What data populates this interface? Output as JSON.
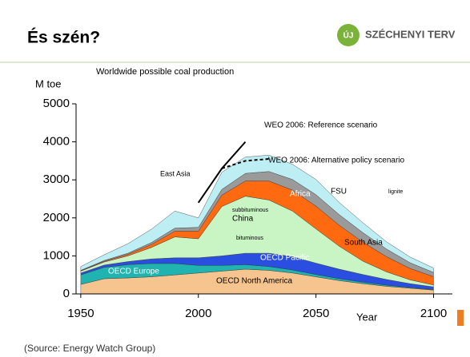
{
  "header": {
    "title": "És szén?",
    "logo_badge": "ÚJ",
    "logo_text": "SZÉCHENYI TERV"
  },
  "chart_data": {
    "type": "stacked_area",
    "title": "Worldwide possible coal production",
    "ylabel": "M toe",
    "xlabel": "Year",
    "x": [
      1950,
      1960,
      1970,
      1980,
      1990,
      2000,
      2010,
      2020,
      2030,
      2040,
      2050,
      2060,
      2070,
      2080,
      2090,
      2100
    ],
    "series": [
      {
        "name": "OECD North America",
        "color": "#f6c48e",
        "values": [
          250,
          400,
          420,
          450,
          500,
          550,
          600,
          650,
          620,
          550,
          450,
          350,
          270,
          200,
          150,
          100
        ]
      },
      {
        "name": "OECD Europe",
        "color": "#20b4b0",
        "values": [
          250,
          300,
          350,
          350,
          300,
          200,
          150,
          120,
          100,
          80,
          60,
          50,
          40,
          30,
          20,
          15
        ]
      },
      {
        "name": "OECD Pacific",
        "color": "#2a4fe0",
        "values": [
          50,
          60,
          80,
          120,
          150,
          200,
          250,
          300,
          350,
          350,
          300,
          250,
          200,
          150,
          100,
          70
        ]
      },
      {
        "name": "China",
        "color": "#c9f5c4",
        "values": [
          50,
          80,
          150,
          300,
          550,
          500,
          1300,
          1500,
          1400,
          1200,
          900,
          600,
          350,
          200,
          100,
          50
        ]
      },
      {
        "name": "South Asia",
        "color": "#ff6a10",
        "values": [
          10,
          20,
          40,
          80,
          150,
          200,
          300,
          400,
          500,
          550,
          600,
          550,
          500,
          400,
          300,
          220
        ]
      },
      {
        "name": "Africa",
        "color": "#9a9a9a",
        "values": [
          10,
          20,
          30,
          50,
          80,
          100,
          150,
          200,
          250,
          280,
          300,
          280,
          250,
          200,
          150,
          110
        ]
      },
      {
        "name": "FSU",
        "color": "#bdeef3",
        "values": [
          100,
          150,
          250,
          350,
          450,
          250,
          450,
          430,
          430,
          400,
          400,
          320,
          260,
          190,
          150,
          115
        ]
      }
    ],
    "lines": [
      {
        "name": "WEO 2006: Reference scenario",
        "color": "#000000",
        "dashed": false,
        "values": [
          null,
          null,
          null,
          null,
          null,
          2400,
          3300,
          4000,
          null,
          null,
          null,
          null,
          null,
          null,
          null,
          null
        ]
      },
      {
        "name": "WEO 2006: Alternative policy scenario",
        "color": "#000000",
        "dashed": true,
        "values": [
          null,
          null,
          null,
          null,
          null,
          null,
          3300,
          3500,
          3550,
          null,
          null,
          null,
          null,
          null,
          null,
          null
        ]
      }
    ],
    "labels": [
      "East Asia",
      "lignite",
      "subbituminous",
      "bituminous"
    ],
    "xlim": [
      1948,
      2108
    ],
    "ylim": [
      0,
      5000
    ],
    "xticks": [
      1950,
      2000,
      2050,
      2100
    ],
    "yticks": [
      0,
      1000,
      2000,
      3000,
      4000,
      5000
    ]
  },
  "source": "(Source: Energy Watch Group)"
}
